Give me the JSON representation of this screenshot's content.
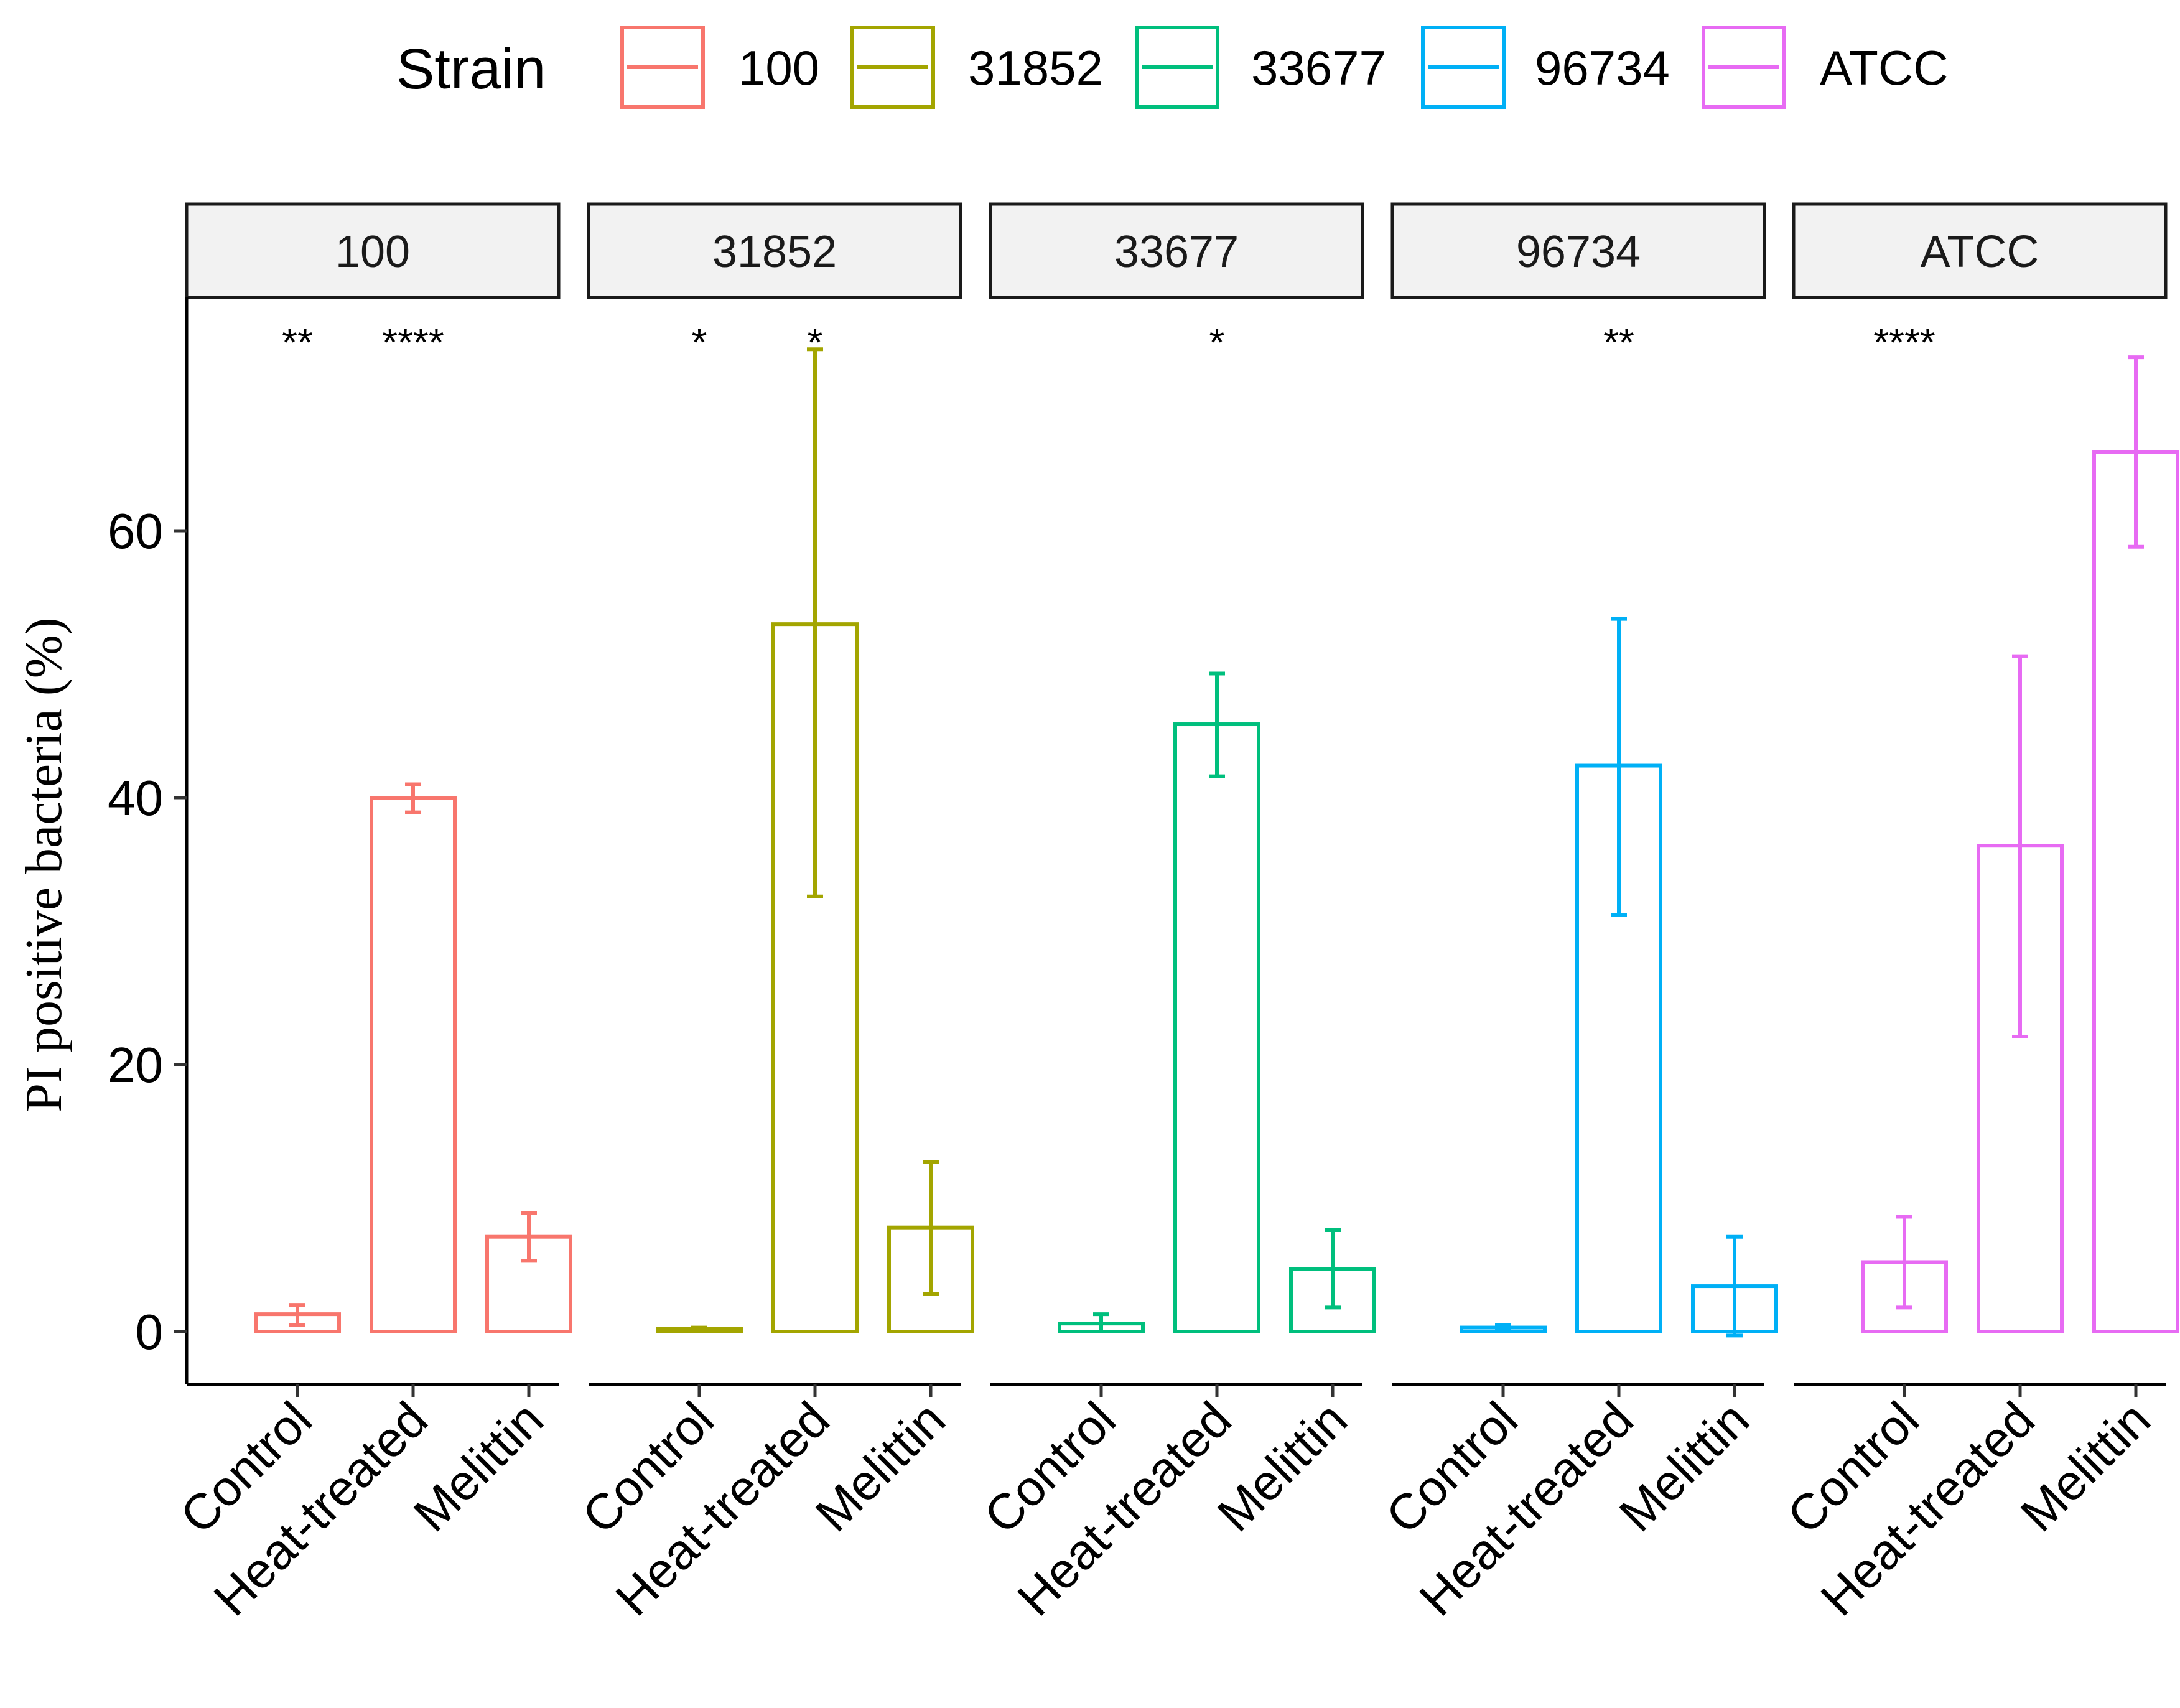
{
  "chart_data": {
    "type": "bar",
    "title": "",
    "xlabel": "",
    "ylabel": "PI positive bacteria (%)",
    "ylim": [
      -4,
      78
    ],
    "yticks": [
      0,
      20,
      40,
      60
    ],
    "categories": [
      "Control",
      "Heat-treated",
      "Melittin"
    ],
    "legend": {
      "title": "Strain",
      "placement": "top",
      "entries": [
        "100",
        "31852",
        "33677",
        "96734",
        "ATCC"
      ]
    },
    "panels": [
      {
        "strain": "100",
        "color": "#F8766D",
        "bars": [
          {
            "category": "Control",
            "value": 1.3,
            "err_low": 0.5,
            "err_high": 2.0,
            "sig": "**"
          },
          {
            "category": "Heat-treated",
            "value": 40.0,
            "err_low": 38.9,
            "err_high": 41.0,
            "sig": "****"
          },
          {
            "category": "Melittin",
            "value": 7.1,
            "err_low": 5.3,
            "err_high": 8.9,
            "sig": ""
          }
        ]
      },
      {
        "strain": "31852",
        "color": "#A3A500",
        "bars": [
          {
            "category": "Control",
            "value": 0.2,
            "err_low": 0.1,
            "err_high": 0.3,
            "sig": "*"
          },
          {
            "category": "Heat-treated",
            "value": 53.0,
            "err_low": 32.6,
            "err_high": 73.6,
            "sig": "*"
          },
          {
            "category": "Melittin",
            "value": 7.8,
            "err_low": 2.8,
            "err_high": 12.7,
            "sig": ""
          }
        ]
      },
      {
        "strain": "33677",
        "color": "#00BF7D",
        "bars": [
          {
            "category": "Control",
            "value": 0.6,
            "err_low": 0.0,
            "err_high": 1.3,
            "sig": ""
          },
          {
            "category": "Heat-treated",
            "value": 45.5,
            "err_low": 41.6,
            "err_high": 49.3,
            "sig": "*"
          },
          {
            "category": "Melittin",
            "value": 4.7,
            "err_low": 1.8,
            "err_high": 7.6,
            "sig": ""
          }
        ]
      },
      {
        "strain": "96734",
        "color": "#00B0F6",
        "bars": [
          {
            "category": "Control",
            "value": 0.3,
            "err_low": 0.1,
            "err_high": 0.5,
            "sig": ""
          },
          {
            "category": "Heat-treated",
            "value": 42.4,
            "err_low": 31.2,
            "err_high": 53.4,
            "sig": "**"
          },
          {
            "category": "Melittin",
            "value": 3.4,
            "err_low": -0.3,
            "err_high": 7.1,
            "sig": ""
          }
        ]
      },
      {
        "strain": "ATCC",
        "color": "#E76BF3",
        "bars": [
          {
            "category": "Control",
            "value": 5.2,
            "err_low": 1.8,
            "err_high": 8.6,
            "sig": "****"
          },
          {
            "category": "Heat-treated",
            "value": 36.4,
            "err_low": 22.1,
            "err_high": 50.6,
            "sig": ""
          },
          {
            "category": "Melittin",
            "value": 65.9,
            "err_low": 58.8,
            "err_high": 73.0,
            "sig": ""
          }
        ]
      }
    ]
  }
}
